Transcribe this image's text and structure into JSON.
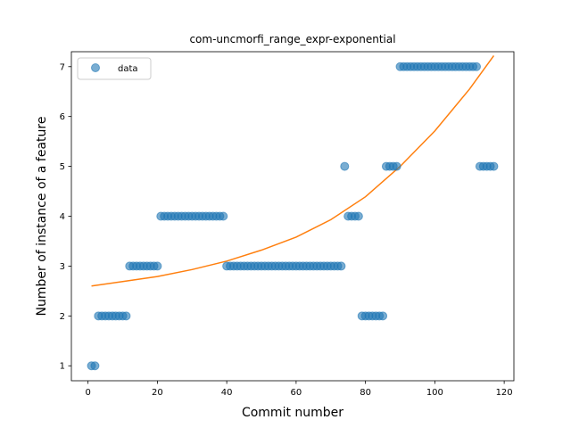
{
  "chart_data": {
    "type": "scatter",
    "title": "com-uncmorfi_range_expr-exponential",
    "xlabel": "Commit number",
    "ylabel": "Number of instance of a feature",
    "xlim": [
      -4.8,
      122.8
    ],
    "ylim": [
      0.7,
      7.3
    ],
    "xticks": [
      0,
      20,
      40,
      60,
      80,
      100,
      120
    ],
    "yticks": [
      1,
      2,
      3,
      4,
      5,
      6,
      7
    ],
    "grid": false,
    "legend": {
      "placement": "top-left",
      "entries": [
        "data"
      ]
    },
    "colors": {
      "data": "#1f77b4",
      "fit": "#ff7f0e"
    },
    "series": [
      {
        "name": "data",
        "kind": "scatter",
        "x": [
          1,
          2,
          3,
          4,
          5,
          6,
          7,
          8,
          9,
          10,
          11,
          12,
          13,
          14,
          15,
          16,
          17,
          18,
          19,
          20,
          21,
          22,
          23,
          24,
          25,
          26,
          27,
          28,
          29,
          30,
          31,
          32,
          33,
          34,
          35,
          36,
          37,
          38,
          39,
          40,
          41,
          42,
          43,
          44,
          45,
          46,
          47,
          48,
          49,
          50,
          51,
          52,
          53,
          54,
          55,
          56,
          57,
          58,
          59,
          60,
          61,
          62,
          63,
          64,
          65,
          66,
          67,
          68,
          69,
          70,
          71,
          72,
          73,
          74,
          75,
          76,
          77,
          78,
          79,
          80,
          81,
          82,
          83,
          84,
          85,
          86,
          87,
          88,
          89,
          90,
          91,
          92,
          93,
          94,
          95,
          96,
          97,
          98,
          99,
          100,
          101,
          102,
          103,
          104,
          105,
          106,
          107,
          108,
          109,
          110,
          111,
          112,
          113,
          114,
          115,
          116,
          117
        ],
        "y": [
          1,
          1,
          2,
          2,
          2,
          2,
          2,
          2,
          2,
          2,
          2,
          3,
          3,
          3,
          3,
          3,
          3,
          3,
          3,
          3,
          4,
          4,
          4,
          4,
          4,
          4,
          4,
          4,
          4,
          4,
          4,
          4,
          4,
          4,
          4,
          4,
          4,
          4,
          4,
          3,
          3,
          3,
          3,
          3,
          3,
          3,
          3,
          3,
          3,
          3,
          3,
          3,
          3,
          3,
          3,
          3,
          3,
          3,
          3,
          3,
          3,
          3,
          3,
          3,
          3,
          3,
          3,
          3,
          3,
          3,
          3,
          3,
          3,
          5,
          4,
          4,
          4,
          4,
          2,
          2,
          2,
          2,
          2,
          2,
          2,
          5,
          5,
          5,
          5,
          7,
          7,
          7,
          7,
          7,
          7,
          7,
          7,
          7,
          7,
          7,
          7,
          7,
          7,
          7,
          7,
          7,
          7,
          7,
          7,
          7,
          7,
          7,
          5,
          5,
          5,
          5,
          5
        ]
      },
      {
        "name": "",
        "kind": "line",
        "x": [
          1,
          10,
          20,
          30,
          40,
          50,
          60,
          70,
          80,
          90,
          100,
          110,
          117
        ],
        "y": [
          2.6,
          2.69,
          2.79,
          2.93,
          3.1,
          3.32,
          3.58,
          3.93,
          4.39,
          5.0,
          5.71,
          6.55,
          7.22
        ]
      }
    ]
  }
}
